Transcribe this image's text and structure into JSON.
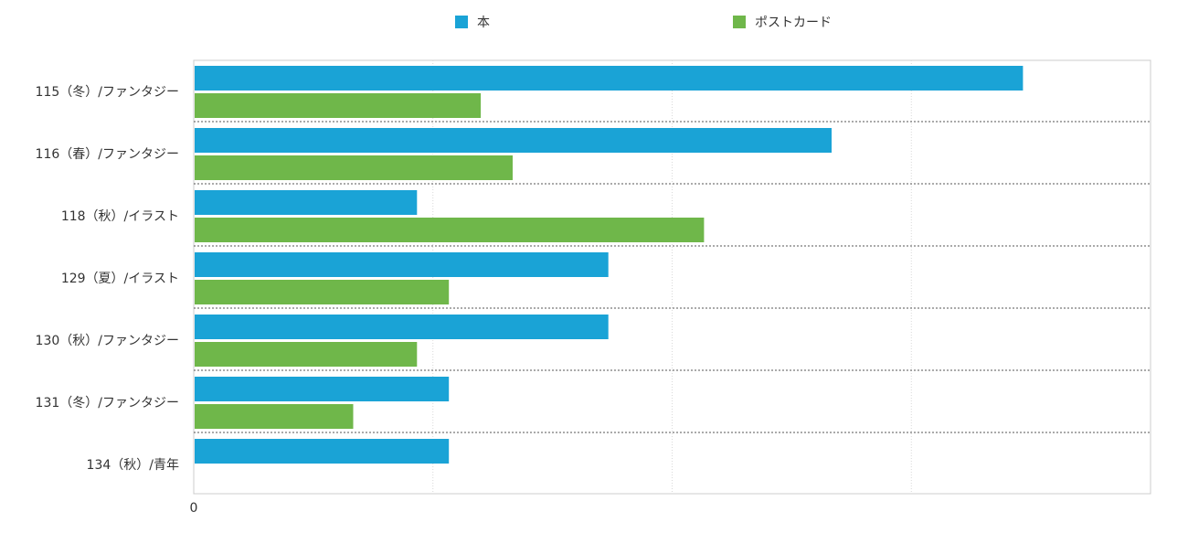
{
  "chart_data": {
    "type": "bar",
    "orientation": "horizontal",
    "categories": [
      "115（冬）/ファンタジー",
      "116（春）/ファンタジー",
      "118（秋）/イラスト",
      "129（夏）/イラスト",
      "130（秋）/ファンタジー",
      "131（冬）/ファンタジー",
      "134（秋）/青年"
    ],
    "series": [
      {
        "name": "本",
        "color": "#1aa3d6",
        "values": [
          26,
          20,
          7,
          13,
          13,
          8,
          8
        ]
      },
      {
        "name": "ポストカード",
        "color": "#6fb74a",
        "values": [
          9,
          10,
          16,
          8,
          7,
          5,
          null
        ]
      }
    ],
    "x_tick_labels": [
      "0"
    ],
    "xlim": [
      0,
      30
    ],
    "grid": true,
    "legend_position": "top"
  }
}
